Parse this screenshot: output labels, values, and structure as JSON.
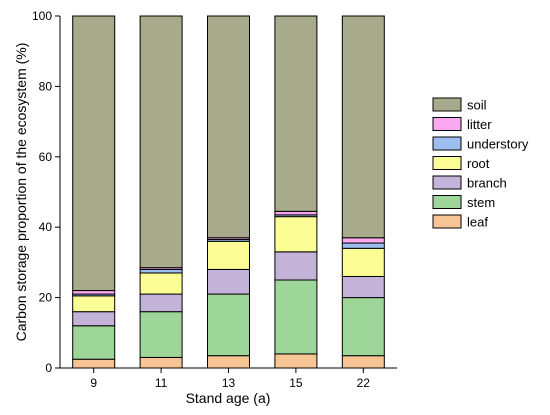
{
  "chart_data": {
    "type": "bar",
    "stacked": true,
    "categories": [
      "9",
      "11",
      "13",
      "15",
      "22"
    ],
    "xlabel": "Stand age (a)",
    "ylabel": "Carbon storage proportion of the ecosystem (%)",
    "ylim": [
      0,
      100
    ],
    "yticks": [
      "0",
      "20",
      "40",
      "60",
      "80",
      "100"
    ],
    "grid": false,
    "legend_position": "right",
    "series": [
      {
        "name": "leaf",
        "color": "#f7c494",
        "values": [
          2.5,
          3.0,
          3.5,
          4.0,
          3.5
        ]
      },
      {
        "name": "stem",
        "color": "#9ed69a",
        "values": [
          9.5,
          13.0,
          17.5,
          21.0,
          16.5
        ]
      },
      {
        "name": "branch",
        "color": "#c3b3d9",
        "values": [
          4.0,
          5.0,
          7.0,
          8.0,
          6.0
        ]
      },
      {
        "name": "root",
        "color": "#fdfd96",
        "values": [
          4.5,
          6.0,
          8.0,
          10.0,
          8.0
        ]
      },
      {
        "name": "understory",
        "color": "#9fbef0",
        "values": [
          0.5,
          1.0,
          0.5,
          0.5,
          1.5
        ]
      },
      {
        "name": "litter",
        "color": "#fba8f0",
        "values": [
          1.0,
          0.5,
          0.5,
          1.0,
          1.5
        ]
      },
      {
        "name": "soil",
        "color": "#a8ab8b",
        "values": [
          78.0,
          71.5,
          63.0,
          55.5,
          63.0
        ]
      }
    ]
  }
}
